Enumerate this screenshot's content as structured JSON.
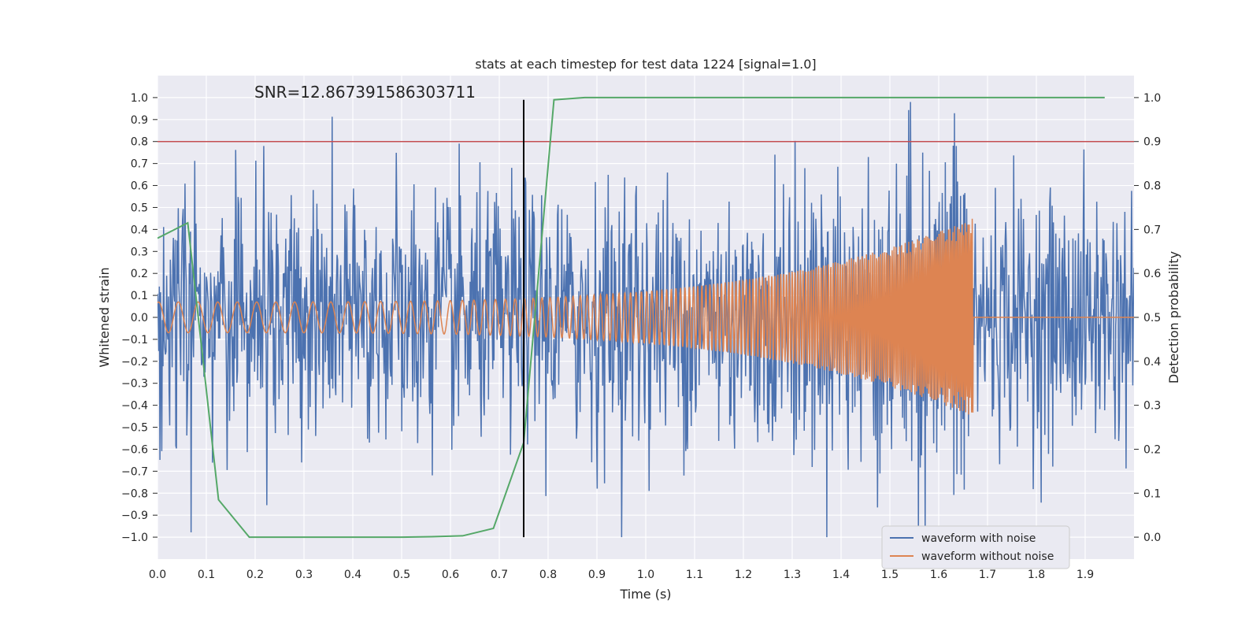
{
  "chart_data": {
    "type": "line",
    "title": "stats at each timestep for test data 1224 [signal=1.0]",
    "annotation": "SNR=12.867391586303711",
    "xlabel": "Time (s)",
    "ylabel": "Whitened strain",
    "y2label": "Detection probability",
    "xlim": [
      0.0,
      2.0
    ],
    "ylim": [
      -1.1,
      1.1
    ],
    "y2lim": [
      -0.05,
      1.05
    ],
    "xticks": [
      "0.0",
      "0.1",
      "0.2",
      "0.3",
      "0.4",
      "0.5",
      "0.6",
      "0.7",
      "0.8",
      "0.9",
      "1.0",
      "1.1",
      "1.2",
      "1.3",
      "1.4",
      "1.5",
      "1.6",
      "1.7",
      "1.8",
      "1.9"
    ],
    "yticks": [
      "1.0",
      "0.9",
      "0.8",
      "0.7",
      "0.6",
      "0.5",
      "0.4",
      "0.3",
      "0.2",
      "0.1",
      "0.0",
      "−0.1",
      "−0.2",
      "−0.3",
      "−0.4",
      "−0.5",
      "−0.6",
      "−0.7",
      "−0.8",
      "−0.9",
      "−1.0"
    ],
    "y2ticks": [
      "1.0",
      "0.9",
      "0.8",
      "0.7",
      "0.6",
      "0.5",
      "0.4",
      "0.3",
      "0.2",
      "0.1",
      "0.0"
    ],
    "grid": true,
    "legend_position": "bottom-right",
    "legend": [
      "waveform with noise",
      "waveform without noise"
    ],
    "colors": {
      "noise": "#4c72b0",
      "clean": "#dd8452",
      "probability": "#55a868",
      "threshold": "#c44e52",
      "marker": "#000000",
      "background": "#eaeaf2"
    },
    "threshold_y2": 0.9,
    "marker_x": 0.75,
    "noise_series": {
      "n_samples": 1600,
      "std": 0.28,
      "t_range": [
        0.0,
        2.0
      ]
    },
    "clean_series": {
      "amp_start": 0.07,
      "amp_end": 0.45,
      "f_start": 45,
      "f_end": 190,
      "t_merge": 1.67
    },
    "probability_series": {
      "x": [
        0.0,
        0.062,
        0.125,
        0.188,
        0.25,
        0.312,
        0.375,
        0.438,
        0.5,
        0.562,
        0.625,
        0.688,
        0.75,
        0.812,
        0.875,
        0.938,
        1.0,
        1.25,
        1.5,
        1.75,
        1.94
      ],
      "y": [
        0.68,
        0.715,
        0.085,
        0.0,
        0.0,
        0.0,
        0.0,
        0.0,
        0.0,
        0.001,
        0.003,
        0.02,
        0.215,
        0.995,
        1.0,
        1.0,
        1.0,
        1.0,
        1.0,
        1.0,
        1.0
      ]
    }
  }
}
